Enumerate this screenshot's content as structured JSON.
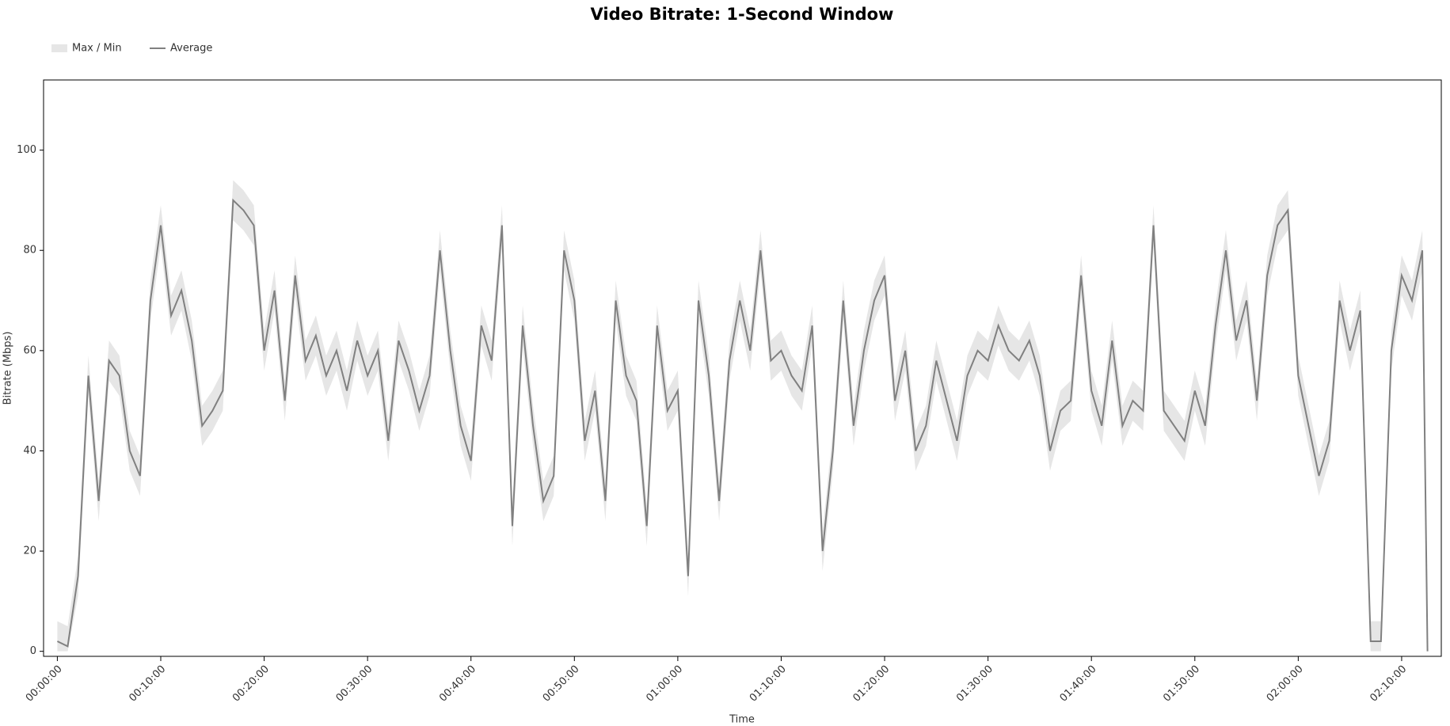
{
  "chart_data": {
    "type": "line",
    "title": "Video Bitrate: 1-Second Window",
    "x_label": "Time",
    "y_label": "Bitrate (Mbps)",
    "x": [
      0,
      60,
      120,
      180,
      240,
      300,
      360,
      420,
      480,
      540,
      600,
      660,
      720,
      780,
      840,
      900,
      960,
      1020,
      1080,
      1140,
      1200,
      1260,
      1320,
      1380,
      1440,
      1500,
      1560,
      1620,
      1680,
      1740,
      1800,
      1860,
      1920,
      1980,
      2040,
      2100,
      2160,
      2220,
      2280,
      2340,
      2400,
      2460,
      2520,
      2580,
      2640,
      2700,
      2760,
      2820,
      2880,
      2940,
      3000,
      3060,
      3120,
      3180,
      3240,
      3300,
      3360,
      3420,
      3480,
      3540,
      3600,
      3660,
      3720,
      3780,
      3840,
      3900,
      3960,
      4020,
      4080,
      4140,
      4200,
      4260,
      4320,
      4380,
      4440,
      4500,
      4560,
      4620,
      4680,
      4740,
      4800,
      4860,
      4920,
      4980,
      5040,
      5100,
      5160,
      5220,
      5280,
      5340,
      5400,
      5460,
      5520,
      5580,
      5640,
      5700,
      5760,
      5820,
      5880,
      5940,
      6000,
      6060,
      6120,
      6180,
      6240,
      6300,
      6360,
      6420,
      6480,
      6540,
      6600,
      6660,
      6720,
      6780,
      6840,
      6900,
      6960,
      7020,
      7080,
      7140,
      7200,
      7260,
      7320,
      7380,
      7440,
      7500,
      7560,
      7620,
      7680,
      7740,
      7800,
      7860,
      7920,
      7950
    ],
    "series": [
      {
        "name": "Max / Min",
        "color": "#e6e6e6",
        "high": [
          6,
          5,
          19,
          59,
          34,
          62,
          59,
          44,
          39,
          74,
          89,
          71,
          76,
          66,
          49,
          52,
          56,
          94,
          92,
          89,
          64,
          76,
          54,
          79,
          62,
          67,
          59,
          64,
          56,
          66,
          59,
          64,
          46,
          66,
          60,
          52,
          59,
          84,
          64,
          49,
          42,
          69,
          62,
          89,
          29,
          69,
          49,
          34,
          39,
          84,
          74,
          46,
          56,
          34,
          74,
          59,
          54,
          29,
          69,
          52,
          56,
          19,
          74,
          59,
          34,
          62,
          74,
          64,
          84,
          62,
          64,
          59,
          56,
          69,
          24,
          44,
          74,
          49,
          64,
          74,
          79,
          54,
          64,
          44,
          49,
          62,
          54,
          46,
          59,
          64,
          62,
          69,
          64,
          62,
          66,
          59,
          44,
          52,
          54,
          79,
          56,
          49,
          66,
          49,
          54,
          52,
          89,
          52,
          49,
          46,
          56,
          49,
          69,
          84,
          66,
          74,
          54,
          79,
          89,
          92,
          59,
          49,
          39,
          46,
          74,
          64,
          72,
          6,
          6,
          64,
          79,
          74,
          84,
          4
        ],
        "low": [
          0,
          0,
          11,
          51,
          26,
          54,
          51,
          36,
          31,
          66,
          81,
          63,
          68,
          58,
          41,
          44,
          48,
          86,
          84,
          81,
          56,
          68,
          46,
          71,
          54,
          59,
          51,
          56,
          48,
          58,
          51,
          56,
          38,
          58,
          52,
          44,
          51,
          76,
          56,
          41,
          34,
          61,
          54,
          81,
          21,
          61,
          41,
          26,
          31,
          76,
          66,
          38,
          48,
          26,
          66,
          51,
          46,
          21,
          61,
          44,
          48,
          11,
          66,
          51,
          26,
          54,
          66,
          56,
          76,
          54,
          56,
          51,
          48,
          61,
          16,
          36,
          66,
          41,
          56,
          66,
          71,
          46,
          56,
          36,
          41,
          54,
          46,
          38,
          51,
          56,
          54,
          61,
          56,
          54,
          58,
          51,
          36,
          44,
          46,
          71,
          48,
          41,
          58,
          41,
          46,
          44,
          81,
          44,
          41,
          38,
          48,
          41,
          61,
          76,
          58,
          66,
          46,
          71,
          81,
          84,
          51,
          41,
          31,
          38,
          66,
          56,
          64,
          0,
          0,
          56,
          71,
          66,
          76,
          0
        ]
      },
      {
        "name": "Average",
        "color": "#808080",
        "values": [
          2,
          1,
          15,
          55,
          30,
          58,
          55,
          40,
          35,
          70,
          85,
          67,
          72,
          62,
          45,
          48,
          52,
          90,
          88,
          85,
          60,
          72,
          50,
          75,
          58,
          63,
          55,
          60,
          52,
          62,
          55,
          60,
          42,
          62,
          56,
          48,
          55,
          80,
          60,
          45,
          38,
          65,
          58,
          85,
          25,
          65,
          45,
          30,
          35,
          80,
          70,
          42,
          52,
          30,
          70,
          55,
          50,
          25,
          65,
          48,
          52,
          15,
          70,
          55,
          30,
          58,
          70,
          60,
          80,
          58,
          60,
          55,
          52,
          65,
          20,
          40,
          70,
          45,
          60,
          70,
          75,
          50,
          60,
          40,
          45,
          58,
          50,
          42,
          55,
          60,
          58,
          65,
          60,
          58,
          62,
          55,
          40,
          48,
          50,
          75,
          52,
          45,
          62,
          45,
          50,
          48,
          85,
          48,
          45,
          42,
          52,
          45,
          65,
          80,
          62,
          70,
          50,
          75,
          85,
          88,
          55,
          45,
          35,
          42,
          70,
          60,
          68,
          2,
          2,
          60,
          75,
          70,
          80,
          0
        ]
      }
    ],
    "xlim": [
      -80,
      8030
    ],
    "ylim": [
      -1,
      114
    ],
    "xticks": [
      {
        "value": 0,
        "label": "00:00:00"
      },
      {
        "value": 600,
        "label": "00:10:00"
      },
      {
        "value": 1200,
        "label": "00:20:00"
      },
      {
        "value": 1800,
        "label": "00:30:00"
      },
      {
        "value": 2400,
        "label": "00:40:00"
      },
      {
        "value": 3000,
        "label": "00:50:00"
      },
      {
        "value": 3600,
        "label": "01:00:00"
      },
      {
        "value": 4200,
        "label": "01:10:00"
      },
      {
        "value": 4800,
        "label": "01:20:00"
      },
      {
        "value": 5400,
        "label": "01:30:00"
      },
      {
        "value": 6000,
        "label": "01:40:00"
      },
      {
        "value": 6600,
        "label": "01:50:00"
      },
      {
        "value": 7200,
        "label": "02:00:00"
      },
      {
        "value": 7800,
        "label": "02:10:00"
      }
    ],
    "yticks": [
      0,
      20,
      40,
      60,
      80,
      100
    ]
  }
}
